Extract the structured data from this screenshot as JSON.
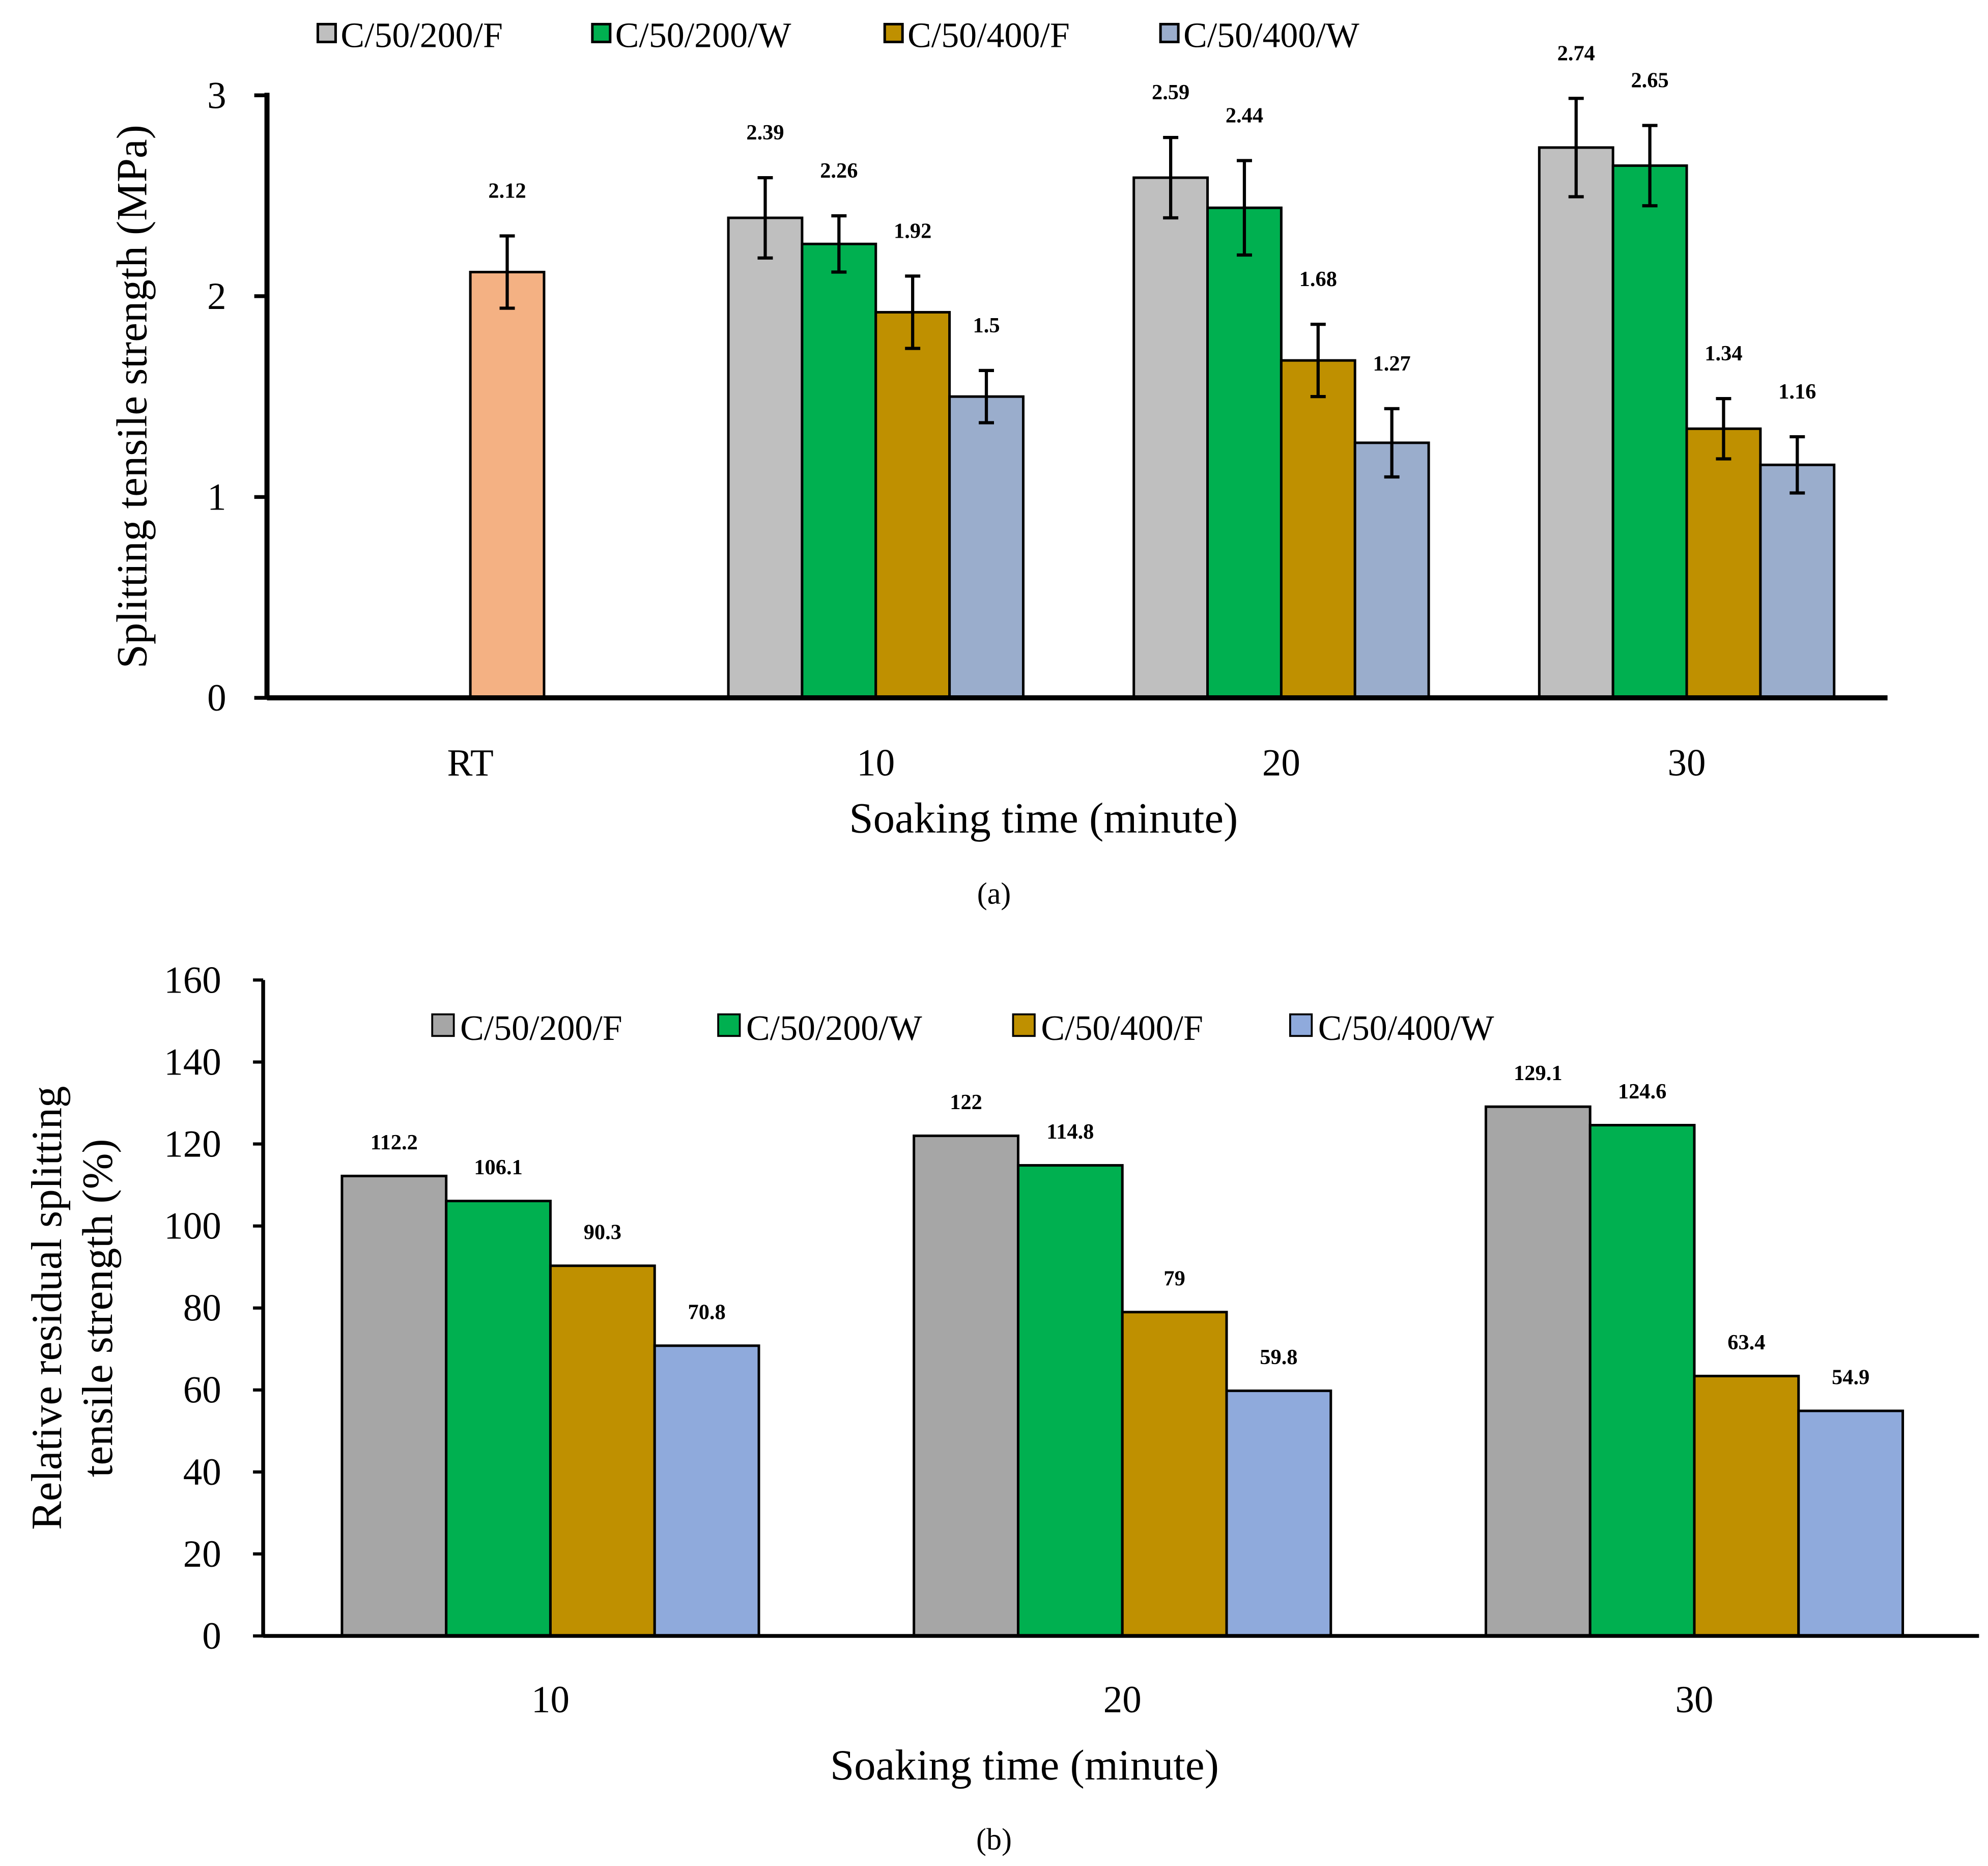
{
  "chart_data": [
    {
      "type": "bar",
      "caption": "(a)",
      "xlabel": "Soaking time (minute)",
      "ylabel": "Splitting tensile strength (MPa)",
      "ylim": [
        0,
        3
      ],
      "yticks": [
        "0",
        "1",
        "2",
        "3"
      ],
      "categories": [
        "RT",
        "10",
        "20",
        "30"
      ],
      "legend_position": "top",
      "reference": {
        "name": "RT",
        "value": 2.12,
        "label": "2.12",
        "error": 0.18,
        "color": "#f4b183"
      },
      "series": [
        {
          "name": "C/50/200/F",
          "color": "#bfbfbf",
          "values": [
            null,
            2.39,
            2.59,
            2.74
          ],
          "labels": [
            "",
            "2.39",
            "2.59",
            "2.74"
          ],
          "errors": [
            null,
            0.2,
            0.2,
            0.245
          ]
        },
        {
          "name": "C/50/200/W",
          "color": "#00b050",
          "values": [
            null,
            2.26,
            2.44,
            2.65
          ],
          "labels": [
            "",
            "2.26",
            "2.44",
            "2.65"
          ],
          "errors": [
            null,
            0.14,
            0.235,
            0.2
          ]
        },
        {
          "name": "C/50/400/F",
          "color": "#bf9000",
          "values": [
            null,
            1.92,
            1.68,
            1.34
          ],
          "labels": [
            "",
            "1.92",
            "1.68",
            "1.34"
          ],
          "errors": [
            null,
            0.18,
            0.18,
            0.15
          ]
        },
        {
          "name": "C/50/400/W",
          "color": "#9aadcc",
          "values": [
            null,
            1.5,
            1.27,
            1.16
          ],
          "labels": [
            "",
            "1.5",
            "1.27",
            "1.16"
          ],
          "errors": [
            null,
            0.13,
            0.17,
            0.14
          ]
        }
      ]
    },
    {
      "type": "bar",
      "caption": "(b)",
      "xlabel": "Soaking time (minute)",
      "ylabel": [
        "Relative residual splitting",
        "tensile strength (%)"
      ],
      "ylim": [
        0,
        160
      ],
      "yticks": [
        "0",
        "20",
        "40",
        "60",
        "80",
        "100",
        "120",
        "140",
        "160"
      ],
      "categories": [
        "10",
        "20",
        "30"
      ],
      "legend_position": "top",
      "series": [
        {
          "name": "C/50/200/F",
          "color": "#a6a6a6",
          "values": [
            112.2,
            122,
            129.1
          ],
          "labels": [
            "112.2",
            "122",
            "129.1"
          ]
        },
        {
          "name": "C/50/200/W",
          "color": "#00b050",
          "values": [
            106.1,
            114.8,
            124.6
          ],
          "labels": [
            "106.1",
            "114.8",
            "124.6"
          ]
        },
        {
          "name": "C/50/400/F",
          "color": "#bf9000",
          "values": [
            90.3,
            79,
            63.4
          ],
          "labels": [
            "90.3",
            "79",
            "63.4"
          ]
        },
        {
          "name": "C/50/400/W",
          "color": "#8faadc",
          "values": [
            70.8,
            59.8,
            54.9
          ],
          "labels": [
            "70.8",
            "59.8",
            "54.9"
          ]
        }
      ]
    }
  ]
}
